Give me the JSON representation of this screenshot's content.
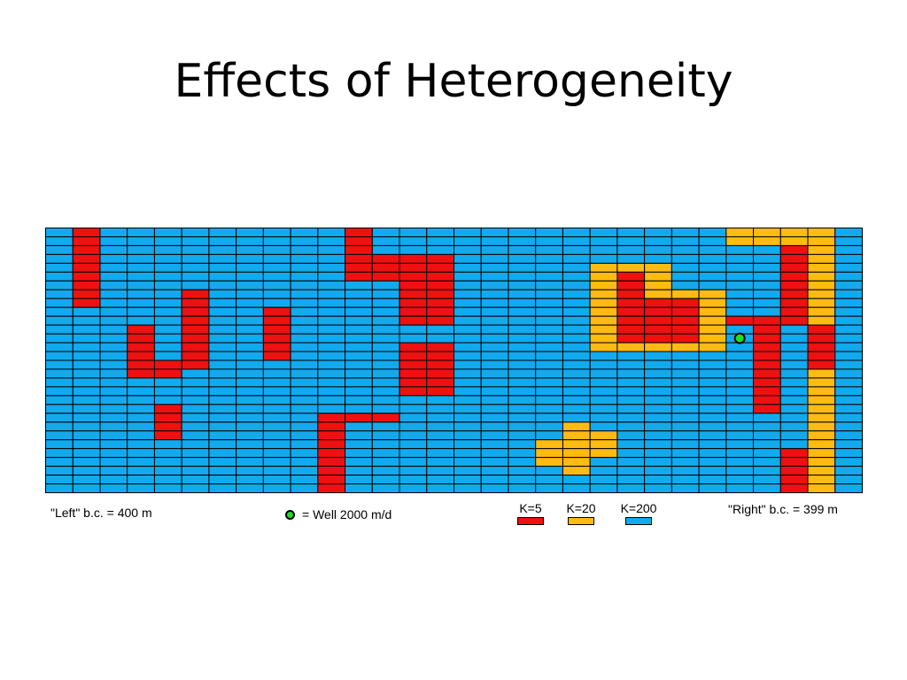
{
  "slide": {
    "title": "Effects of Heterogeneity"
  },
  "diagram": {
    "cols": 30,
    "rows": 30,
    "base_k": "200",
    "colors": {
      "5": "#ee1111",
      "20": "#ffbb11",
      "200": "#11aaee",
      "grid": "#000000",
      "well": "#22dd22"
    },
    "blocks": [
      {
        "k": "5",
        "c": [
          1,
          1
        ],
        "r": [
          0,
          8
        ]
      },
      {
        "k": "5",
        "c": [
          5,
          5
        ],
        "r": [
          7,
          15
        ]
      },
      {
        "k": "5",
        "c": [
          3,
          3
        ],
        "r": [
          11,
          16
        ]
      },
      {
        "k": "5",
        "c": [
          4,
          4
        ],
        "r": [
          15,
          16
        ]
      },
      {
        "k": "5",
        "c": [
          4,
          4
        ],
        "r": [
          20,
          23
        ]
      },
      {
        "k": "5",
        "c": [
          8,
          8
        ],
        "r": [
          9,
          14
        ]
      },
      {
        "k": "5",
        "c": [
          11,
          11
        ],
        "r": [
          0,
          5
        ]
      },
      {
        "k": "5",
        "c": [
          12,
          12
        ],
        "r": [
          3,
          5
        ]
      },
      {
        "k": "5",
        "c": [
          13,
          14
        ],
        "r": [
          3,
          10
        ]
      },
      {
        "k": "5",
        "c": [
          13,
          14
        ],
        "r": [
          13,
          18
        ]
      },
      {
        "k": "5",
        "c": [
          10,
          10
        ],
        "r": [
          21,
          29
        ]
      },
      {
        "k": "5",
        "c": [
          11,
          12
        ],
        "r": [
          21,
          21
        ]
      },
      {
        "k": "20",
        "c": [
          20,
          22
        ],
        "r": [
          4,
          13
        ]
      },
      {
        "k": "20",
        "c": [
          23,
          24
        ],
        "r": [
          7,
          13
        ]
      },
      {
        "k": "5",
        "c": [
          21,
          21
        ],
        "r": [
          5,
          12
        ]
      },
      {
        "k": "5",
        "c": [
          22,
          22
        ],
        "r": [
          8,
          12
        ]
      },
      {
        "k": "5",
        "c": [
          23,
          23
        ],
        "r": [
          8,
          12
        ]
      },
      {
        "k": "20",
        "c": [
          18,
          18
        ],
        "r": [
          24,
          26
        ]
      },
      {
        "k": "20",
        "c": [
          19,
          19
        ],
        "r": [
          22,
          27
        ]
      },
      {
        "k": "20",
        "c": [
          20,
          20
        ],
        "r": [
          23,
          25
        ]
      },
      {
        "k": "20",
        "c": [
          25,
          28
        ],
        "r": [
          0,
          1
        ]
      },
      {
        "k": "20",
        "c": [
          28,
          28
        ],
        "r": [
          2,
          29
        ]
      },
      {
        "k": "5",
        "c": [
          27,
          27
        ],
        "r": [
          2,
          10
        ]
      },
      {
        "k": "5",
        "c": [
          25,
          25
        ],
        "r": [
          10,
          10
        ]
      },
      {
        "k": "5",
        "c": [
          26,
          26
        ],
        "r": [
          10,
          20
        ]
      },
      {
        "k": "5",
        "c": [
          28,
          28
        ],
        "r": [
          11,
          15
        ]
      },
      {
        "k": "5",
        "c": [
          27,
          27
        ],
        "r": [
          25,
          29
        ]
      }
    ],
    "well": {
      "col": 25,
      "row": 12
    }
  },
  "labels": {
    "left_bc": "\"Left\" b.c. = 400 m",
    "well": "= Well 2000 m/d",
    "right_bc": "\"Right\" b.c. = 399 m"
  },
  "legend": [
    {
      "label": "K=5",
      "key": "5"
    },
    {
      "label": "K=20",
      "key": "20"
    },
    {
      "label": "K=200",
      "key": "200"
    }
  ]
}
